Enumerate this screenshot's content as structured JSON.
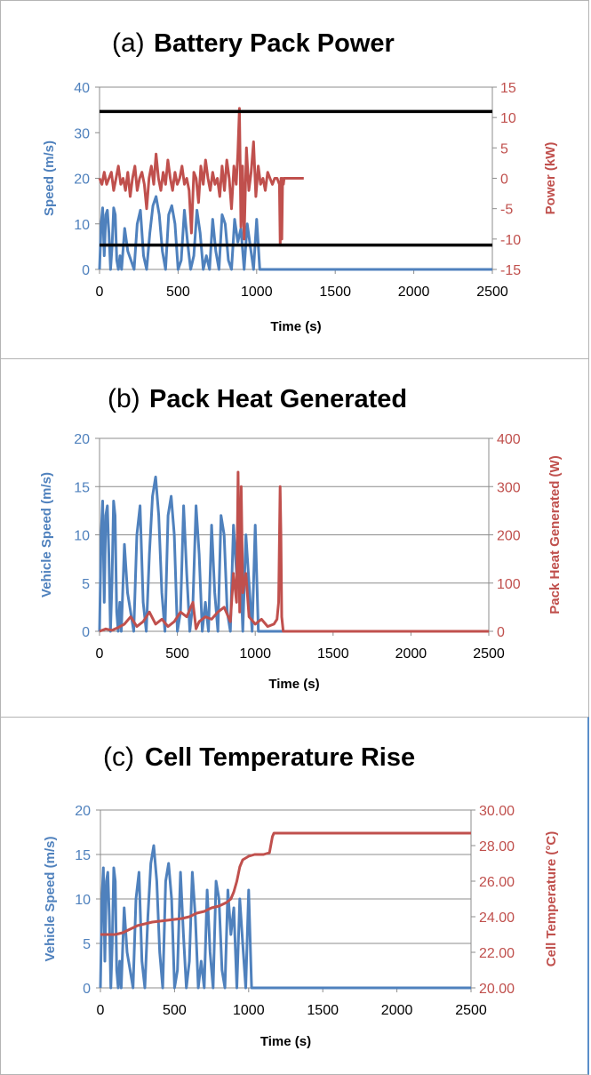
{
  "chart_data": [
    {
      "type": "line",
      "title_prefix": "(a)",
      "title": "Battery Pack  Power",
      "xlabel": "Time (s)",
      "ylabel_left": "Speed (m/s)",
      "ylabel_right": "Power (kW)",
      "xlim": [
        0,
        2500
      ],
      "ylim_left": [
        0,
        40
      ],
      "ylim_right": [
        -15,
        15
      ],
      "x_ticks": [
        "0",
        "500",
        "1000",
        "1500",
        "2000",
        "2500"
      ],
      "y_left_ticks": [
        "0",
        "10",
        "20",
        "30",
        "40"
      ],
      "y_right_ticks": [
        "-15",
        "-10",
        "-5",
        "0",
        "5",
        "10",
        "15"
      ],
      "grid": false,
      "colors": {
        "speed": "#4f81bd",
        "right": "#c0504d",
        "limit": "#000000"
      },
      "series": [
        {
          "axis": "left",
          "color": "#4f81bd",
          "x": [
            0,
            10,
            20,
            30,
            40,
            50,
            60,
            70,
            80,
            90,
            100,
            110,
            120,
            130,
            140,
            160,
            180,
            200,
            220,
            240,
            260,
            280,
            300,
            320,
            340,
            360,
            380,
            400,
            420,
            440,
            460,
            480,
            500,
            520,
            540,
            560,
            580,
            600,
            620,
            640,
            660,
            680,
            700,
            720,
            740,
            760,
            780,
            800,
            820,
            840,
            860,
            880,
            900,
            920,
            940,
            960,
            980,
            1000,
            1020,
            1040,
            1042,
            2500
          ],
          "y": [
            0,
            10,
            13.5,
            3,
            12,
            13,
            8,
            0,
            5,
            13.5,
            12,
            2,
            0,
            3,
            0,
            9,
            4,
            2,
            0,
            10,
            13,
            3,
            0,
            8,
            14,
            16,
            12,
            4,
            0,
            12,
            14,
            10,
            0,
            2,
            13,
            6,
            0,
            3,
            13,
            8,
            0,
            3,
            0,
            11,
            4,
            0,
            12,
            10,
            2,
            0,
            11,
            6,
            9,
            0,
            10,
            5,
            0,
            11,
            0,
            0,
            0,
            0
          ]
        },
        {
          "axis": "right",
          "color": "#c0504d",
          "x": [
            0,
            15,
            30,
            45,
            60,
            75,
            90,
            105,
            120,
            135,
            150,
            165,
            180,
            195,
            210,
            225,
            240,
            255,
            270,
            285,
            300,
            315,
            330,
            345,
            360,
            375,
            390,
            405,
            420,
            435,
            450,
            465,
            480,
            495,
            510,
            525,
            540,
            555,
            570,
            585,
            600,
            615,
            630,
            645,
            660,
            675,
            690,
            705,
            720,
            735,
            750,
            765,
            780,
            795,
            810,
            825,
            840,
            855,
            870,
            880,
            890,
            895,
            900,
            910,
            920,
            935,
            950,
            965,
            980,
            995,
            1010,
            1025,
            1040,
            1055,
            1070,
            1085,
            1100,
            1115,
            1130,
            1145,
            1150,
            1155,
            1160,
            1165,
            1170,
            1175,
            1180,
            1200,
            1300
          ],
          "y": [
            0,
            -1,
            1,
            -1,
            0,
            1,
            -2,
            0,
            2,
            -1,
            0,
            -2,
            1,
            -3,
            0,
            2,
            -2,
            0,
            1,
            -1,
            -5,
            0,
            2,
            -1,
            4,
            0,
            -2,
            1,
            -1,
            3,
            0,
            -2,
            1,
            -1,
            0,
            2,
            -1,
            0,
            -2,
            -9,
            1,
            0,
            -4,
            2,
            -1,
            3,
            0,
            -2,
            1,
            -1,
            0,
            -3,
            2,
            -2,
            3,
            0,
            -5,
            2,
            -1,
            4,
            11.5,
            3,
            -8,
            2,
            -10,
            5,
            -2,
            1,
            6,
            -3,
            2,
            -1,
            0,
            -2,
            1,
            0,
            -1,
            0,
            0,
            -1,
            -11,
            0,
            -10,
            0,
            -1,
            0,
            0,
            0,
            0
          ]
        }
      ],
      "horizontal_lines": [
        {
          "axis": "right",
          "y": 11
        },
        {
          "axis": "right",
          "y": -11
        }
      ]
    },
    {
      "type": "line",
      "title_prefix": "(b)",
      "title": "Pack Heat Generated",
      "xlabel": "Time (s)",
      "ylabel_left": "Vehicle Speed (m/s)",
      "ylabel_right": "Pack Heat Generated (W)",
      "xlim": [
        0,
        2500
      ],
      "ylim_left": [
        0,
        20
      ],
      "ylim_right": [
        0,
        400
      ],
      "x_ticks": [
        "0",
        "500",
        "1000",
        "1500",
        "2000",
        "2500"
      ],
      "y_left_ticks": [
        "0",
        "5",
        "10",
        "15",
        "20"
      ],
      "y_right_ticks": [
        "0",
        "100",
        "200",
        "300",
        "400"
      ],
      "grid": true,
      "colors": {
        "speed": "#4f81bd",
        "right": "#c0504d"
      },
      "series": [
        {
          "axis": "left",
          "color": "#4f81bd",
          "x": [
            0,
            10,
            20,
            30,
            40,
            50,
            60,
            70,
            80,
            90,
            100,
            110,
            120,
            130,
            140,
            160,
            180,
            200,
            220,
            240,
            260,
            280,
            300,
            320,
            340,
            360,
            380,
            400,
            420,
            440,
            460,
            480,
            500,
            520,
            540,
            560,
            580,
            600,
            620,
            640,
            660,
            680,
            700,
            720,
            740,
            760,
            780,
            800,
            820,
            840,
            860,
            880,
            900,
            920,
            940,
            960,
            980,
            1000,
            1020,
            1040,
            1042,
            2500
          ],
          "y": [
            0,
            10,
            13.5,
            3,
            12,
            13,
            8,
            0,
            5,
            13.5,
            12,
            2,
            0,
            3,
            0,
            9,
            4,
            2,
            0,
            10,
            13,
            3,
            0,
            8,
            14,
            16,
            12,
            4,
            0,
            12,
            14,
            10,
            0,
            2,
            13,
            6,
            0,
            3,
            13,
            8,
            0,
            3,
            0,
            11,
            4,
            0,
            12,
            10,
            2,
            0,
            11,
            6,
            9,
            0,
            10,
            5,
            0,
            11,
            0,
            0,
            0,
            0
          ]
        },
        {
          "axis": "right",
          "color": "#c0504d",
          "x": [
            0,
            40,
            80,
            120,
            160,
            200,
            240,
            280,
            320,
            360,
            400,
            440,
            480,
            520,
            560,
            600,
            620,
            640,
            680,
            720,
            760,
            800,
            840,
            860,
            880,
            890,
            900,
            910,
            920,
            940,
            960,
            1000,
            1040,
            1080,
            1120,
            1140,
            1150,
            1160,
            1165,
            1170,
            1180,
            1200,
            2500
          ],
          "y": [
            0,
            5,
            2,
            8,
            15,
            30,
            10,
            20,
            40,
            15,
            25,
            10,
            20,
            40,
            30,
            60,
            5,
            20,
            30,
            25,
            40,
            50,
            20,
            120,
            60,
            330,
            40,
            300,
            80,
            120,
            30,
            15,
            25,
            10,
            15,
            25,
            60,
            300,
            200,
            30,
            0,
            0,
            0
          ]
        }
      ]
    },
    {
      "type": "line",
      "title_prefix": "(c)",
      "title": "Cell Temperature Rise",
      "xlabel": "Time (s)",
      "ylabel_left": "Vehicle Speed (m/s)",
      "ylabel_right": "Cell Temperature (°C)",
      "xlim": [
        0,
        2500
      ],
      "ylim_left": [
        0,
        20
      ],
      "ylim_right": [
        20,
        30
      ],
      "x_ticks": [
        "0",
        "500",
        "1000",
        "1500",
        "2000",
        "2500"
      ],
      "y_left_ticks": [
        "0",
        "5",
        "10",
        "15",
        "20"
      ],
      "y_right_ticks": [
        "20.00",
        "22.00",
        "24.00",
        "26.00",
        "28.00",
        "30.00"
      ],
      "grid": true,
      "colors": {
        "speed": "#4f81bd",
        "right": "#c0504d"
      },
      "series": [
        {
          "axis": "left",
          "color": "#4f81bd",
          "x": [
            0,
            10,
            20,
            30,
            40,
            50,
            60,
            70,
            80,
            90,
            100,
            110,
            120,
            130,
            140,
            160,
            180,
            200,
            220,
            240,
            260,
            280,
            300,
            320,
            340,
            360,
            380,
            400,
            420,
            440,
            460,
            480,
            500,
            520,
            540,
            560,
            580,
            600,
            620,
            640,
            660,
            680,
            700,
            720,
            740,
            760,
            780,
            800,
            820,
            840,
            860,
            880,
            900,
            920,
            940,
            960,
            980,
            1000,
            1020,
            1040,
            1042,
            2500
          ],
          "y": [
            0,
            10,
            13.5,
            3,
            12,
            13,
            8,
            0,
            5,
            13.5,
            12,
            2,
            0,
            3,
            0,
            9,
            4,
            2,
            0,
            10,
            13,
            3,
            0,
            8,
            14,
            16,
            12,
            4,
            0,
            12,
            14,
            10,
            0,
            2,
            13,
            6,
            0,
            3,
            13,
            8,
            0,
            3,
            0,
            11,
            4,
            0,
            12,
            10,
            2,
            0,
            11,
            6,
            9,
            0,
            10,
            5,
            0,
            11,
            0,
            0,
            0,
            0
          ]
        },
        {
          "axis": "right",
          "color": "#c0504d",
          "x": [
            0,
            100,
            150,
            200,
            250,
            300,
            350,
            400,
            450,
            500,
            550,
            600,
            650,
            700,
            750,
            800,
            850,
            880,
            900,
            920,
            940,
            960,
            1000,
            1040,
            1100,
            1140,
            1160,
            1170,
            1200,
            2500
          ],
          "y": [
            23.0,
            23.0,
            23.1,
            23.3,
            23.5,
            23.6,
            23.7,
            23.75,
            23.8,
            23.85,
            23.9,
            24.0,
            24.2,
            24.3,
            24.5,
            24.6,
            24.8,
            25.0,
            25.4,
            26.0,
            26.8,
            27.2,
            27.4,
            27.5,
            27.5,
            27.6,
            28.5,
            28.7,
            28.7,
            28.7
          ]
        }
      ]
    }
  ]
}
